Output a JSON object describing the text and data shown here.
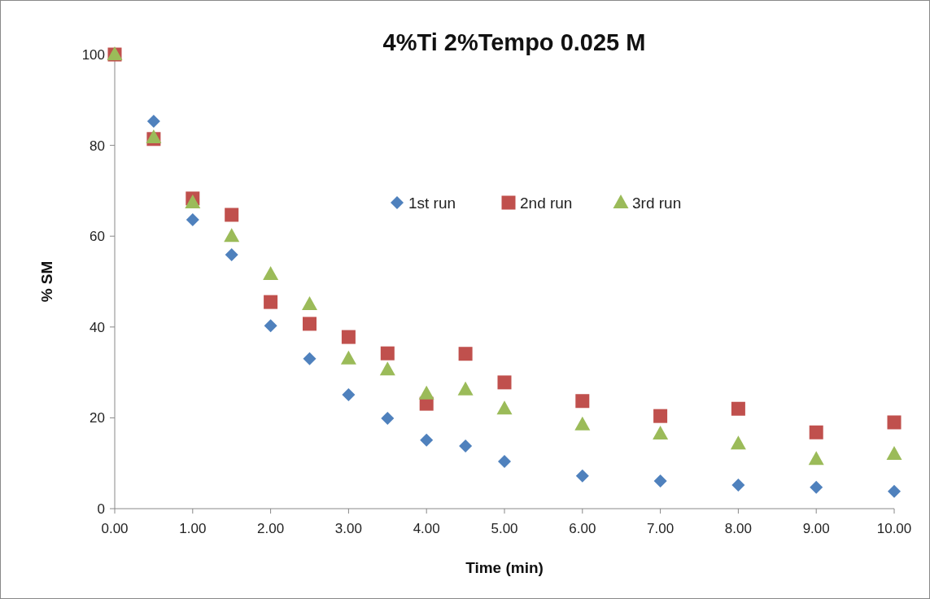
{
  "chart_data": {
    "type": "scatter",
    "title": "4%Ti 2%Tempo 0.025 M",
    "xlabel": "Time (min)",
    "ylabel": "% SM",
    "x": [
      0,
      0.5,
      1,
      1.5,
      2,
      2.5,
      3,
      3.5,
      4,
      4.5,
      5,
      6,
      7,
      8,
      9,
      10
    ],
    "series": [
      {
        "name": "1st run",
        "color": "#4f81bd",
        "marker": "diamond",
        "values": [
          null,
          85.3,
          63.6,
          55.9,
          40.3,
          33.0,
          25.1,
          19.9,
          15.1,
          13.8,
          10.4,
          7.2,
          6.1,
          5.2,
          4.7,
          3.8
        ]
      },
      {
        "name": "2nd run",
        "color": "#c0504d",
        "marker": "square",
        "values": [
          100,
          81.4,
          68.3,
          64.7,
          45.5,
          40.7,
          37.8,
          34.2,
          23.1,
          34.1,
          27.8,
          23.7,
          20.4,
          22.0,
          16.8,
          19.0
        ]
      },
      {
        "name": "3rd run",
        "color": "#9bbb59",
        "marker": "triangle",
        "values": [
          100,
          81.7,
          67.4,
          60.0,
          51.6,
          45.0,
          33.0,
          30.6,
          25.3,
          26.2,
          22.0,
          18.5,
          16.5,
          14.3,
          10.9,
          12.0
        ]
      }
    ],
    "xlim": [
      0,
      10
    ],
    "xticks": [
      {
        "value": 0,
        "label": "0.00"
      },
      {
        "value": 1,
        "label": "1.00"
      },
      {
        "value": 2,
        "label": "2.00"
      },
      {
        "value": 3,
        "label": "3.00"
      },
      {
        "value": 4,
        "label": "4.00"
      },
      {
        "value": 5,
        "label": "5.00"
      },
      {
        "value": 6,
        "label": "6.00"
      },
      {
        "value": 7,
        "label": "7.00"
      },
      {
        "value": 8,
        "label": "8.00"
      },
      {
        "value": 9,
        "label": "9.00"
      },
      {
        "value": 10,
        "label": "10.00"
      }
    ],
    "ylim": [
      0,
      100
    ],
    "yticks": [
      0,
      20,
      40,
      60,
      80,
      100
    ],
    "legend": "top right",
    "grid": false
  }
}
